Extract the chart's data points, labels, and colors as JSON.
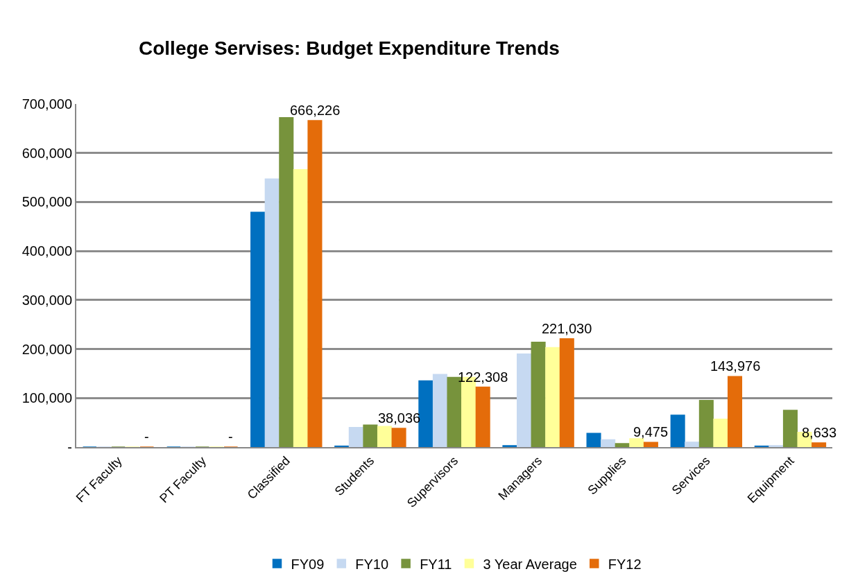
{
  "chart_data": {
    "type": "bar",
    "title": "College Servises: Budget Expenditure Trends",
    "categories": [
      "FT Faculty",
      "PT Faculty",
      "Classified",
      "Students",
      "Supervisors",
      "Managers",
      "Supplies",
      "Services",
      "Equipment"
    ],
    "series": [
      {
        "name": "FY09",
        "color": "#0070c0",
        "values": [
          0,
          0,
          479000,
          2000,
          135000,
          3000,
          28000,
          65000,
          2000
        ]
      },
      {
        "name": "FY10",
        "color": "#c6d9f1",
        "values": [
          0,
          0,
          547000,
          40000,
          148000,
          190000,
          15000,
          10000,
          3000
        ]
      },
      {
        "name": "FY11",
        "color": "#77933c",
        "values": [
          0,
          0,
          672000,
          45000,
          142000,
          214000,
          7000,
          95000,
          75000
        ]
      },
      {
        "name": "3 Year Average",
        "color": "#ffff99",
        "values": [
          0,
          0,
          566000,
          42000,
          142000,
          203000,
          17000,
          57000,
          30000
        ]
      },
      {
        "name": "FY12",
        "color": "#e46c0a",
        "values": [
          0,
          0,
          666226,
          38036,
          122308,
          221030,
          9475,
          143976,
          8633
        ],
        "value_labels": [
          "-",
          "-",
          "666,226",
          "38,036",
          "122,308",
          "221,030",
          "9,475",
          "143,976",
          "8,633"
        ]
      }
    ],
    "ylim": [
      0,
      700000
    ],
    "yticks": [
      {
        "value": 0,
        "label": "-"
      },
      {
        "value": 100000,
        "label": "100,000"
      },
      {
        "value": 200000,
        "label": "200,000"
      },
      {
        "value": 300000,
        "label": "300,000"
      },
      {
        "value": 400000,
        "label": "400,000"
      },
      {
        "value": 500000,
        "label": "500,000"
      },
      {
        "value": 600000,
        "label": "600,000"
      },
      {
        "value": 700000,
        "label": "700,000"
      }
    ],
    "grid": "y",
    "legend": "bottom"
  }
}
